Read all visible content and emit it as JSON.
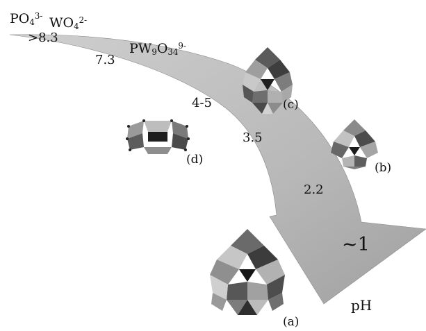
{
  "species": {
    "phosphate": {
      "base": "PO",
      "sub": "4",
      "sup": "3-"
    },
    "tungstate": {
      "base": "WO",
      "sub": "4",
      "sup": "2-"
    },
    "pw9": {
      "p1": "PW",
      "s1": "9",
      "p2": "O",
      "s2": "34",
      "sup": "9-"
    }
  },
  "ph_labels": [
    ">8.3",
    "7.3",
    "4-5",
    "3.5",
    "2.2",
    "~1"
  ],
  "axis_label": "pH",
  "structure_labels": {
    "a": "(a)",
    "b": "(b)",
    "c": "(c)",
    "d": "(d)"
  },
  "colors": {
    "arrow_light": "#c4c4c4",
    "arrow_dark": "#9a9a9a",
    "poly_dark": "#3a3a3a",
    "poly_mid": "#7a7a7a",
    "poly_light": "#bdbdbd"
  }
}
